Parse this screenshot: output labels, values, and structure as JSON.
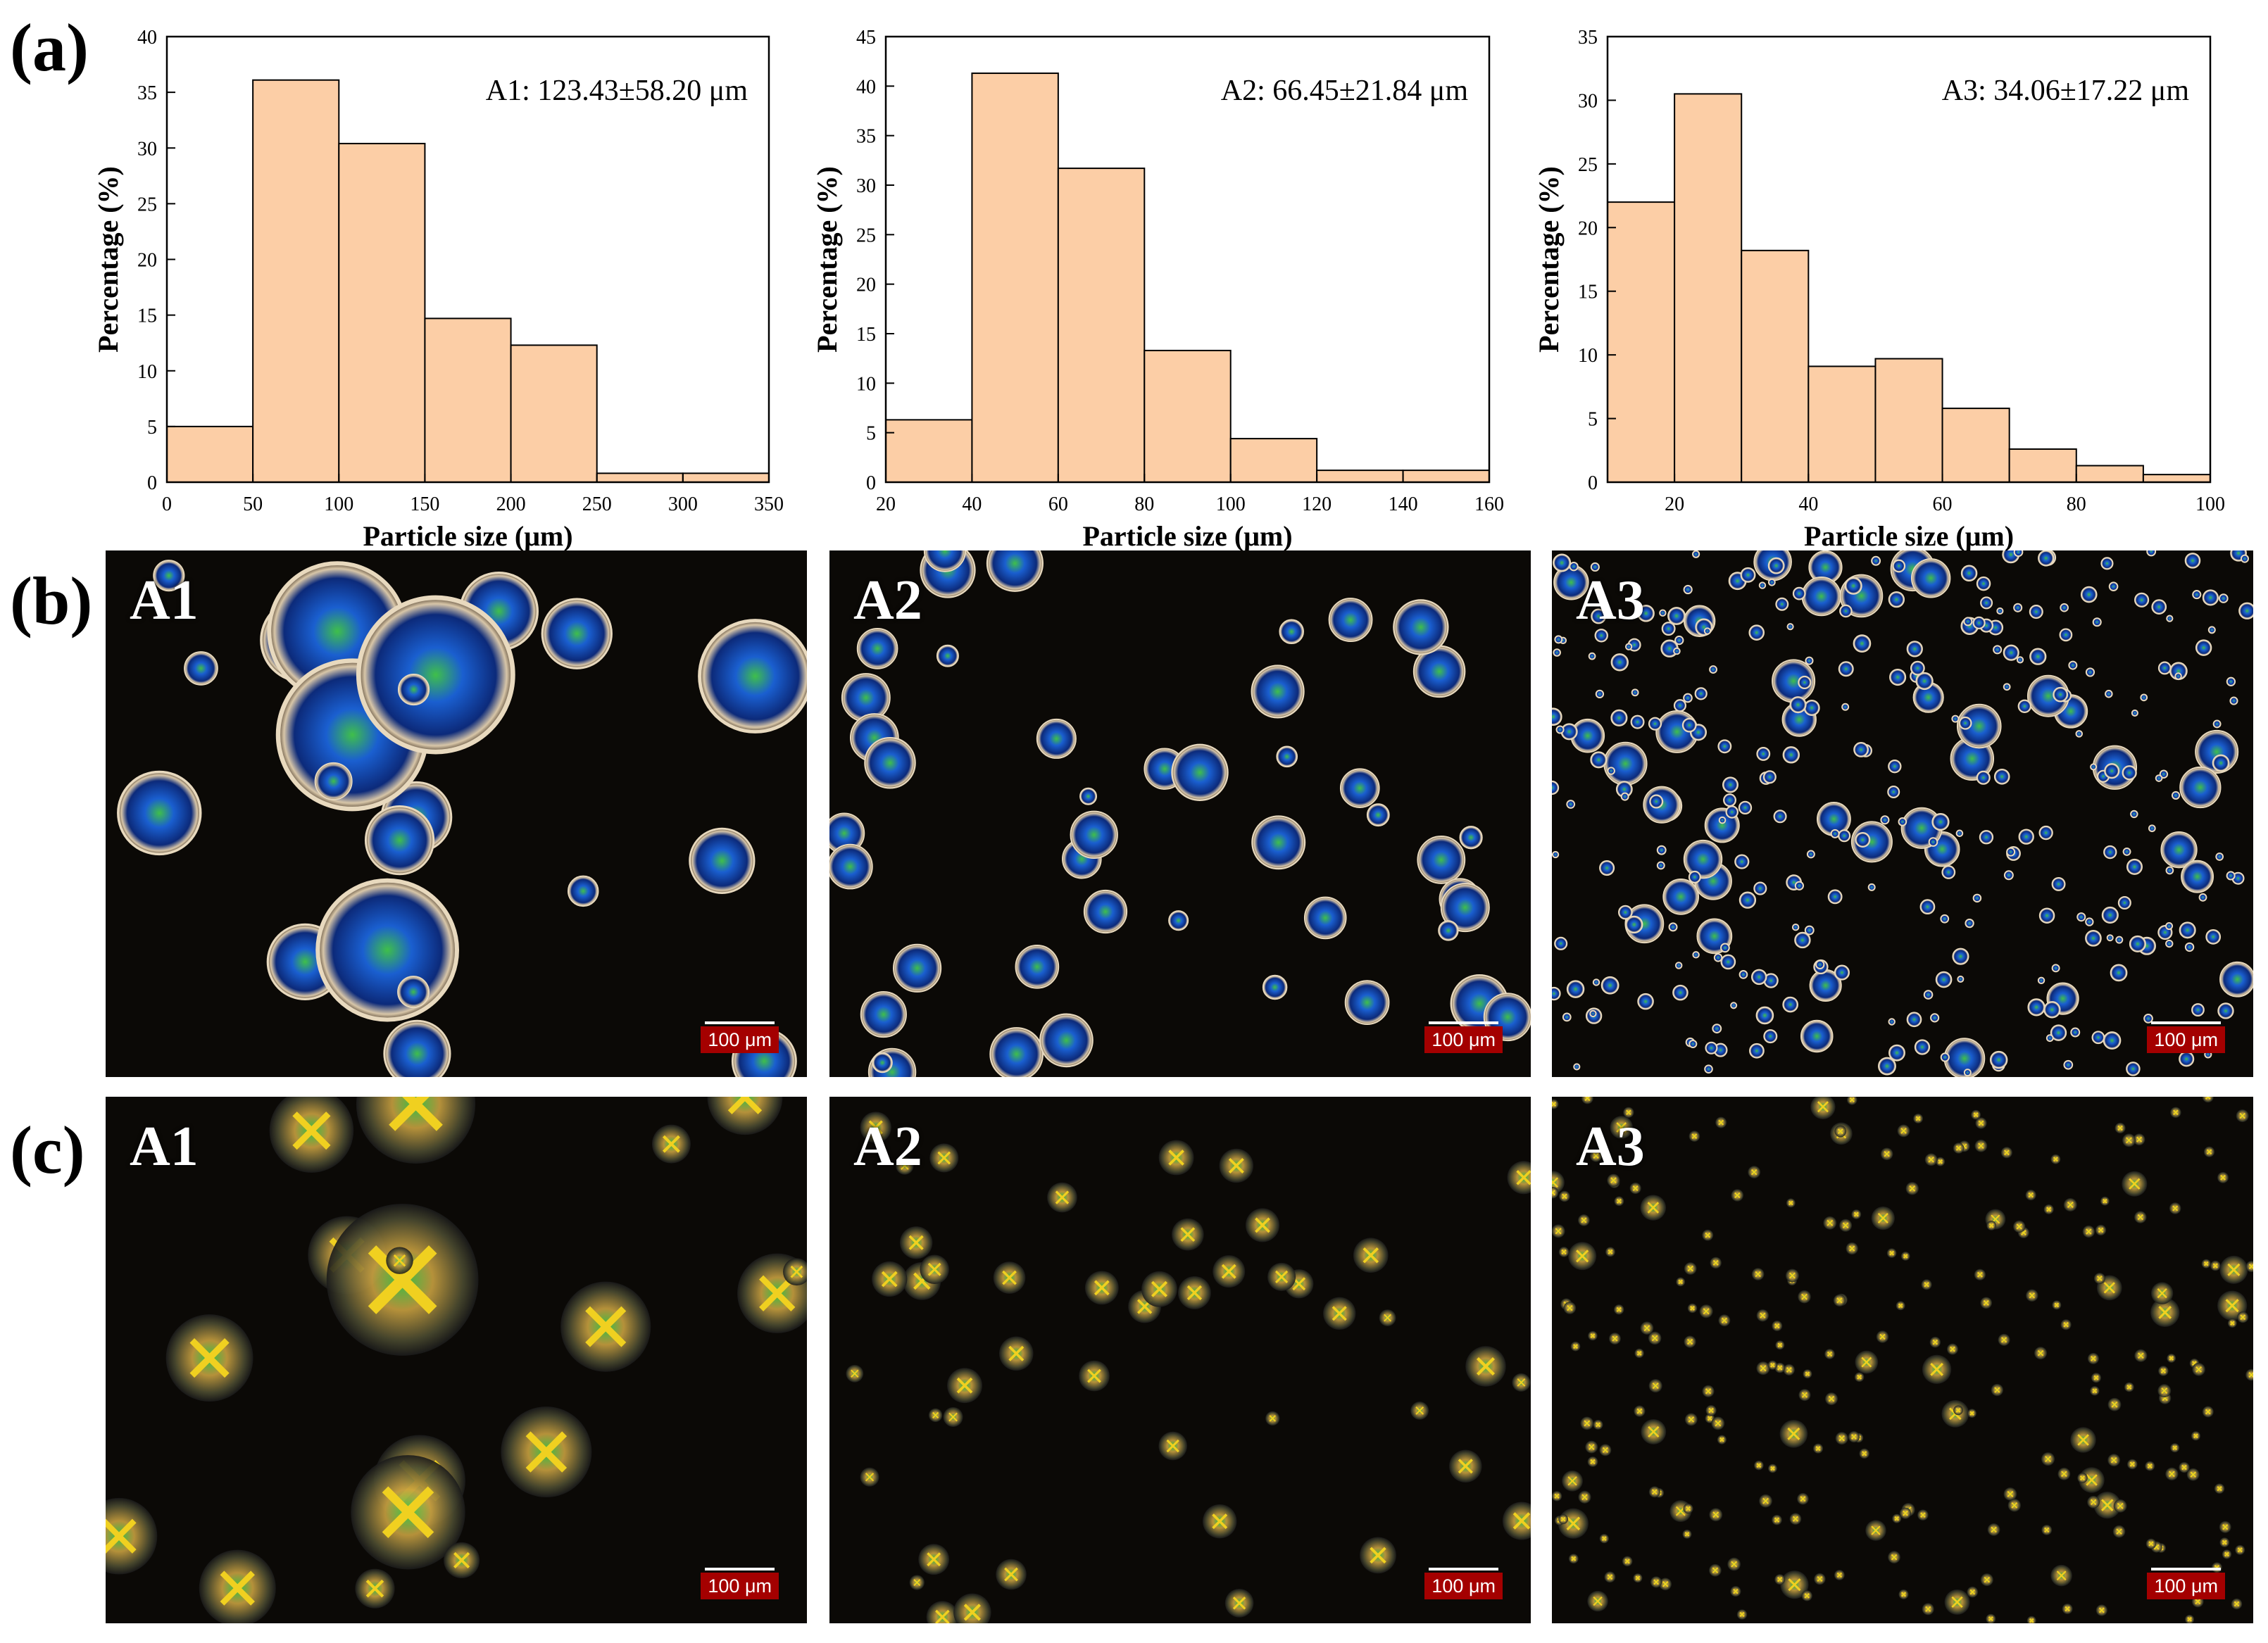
{
  "panel_letters": {
    "a": "(a)",
    "b": "(b)",
    "c": "(c)"
  },
  "chart_data": [
    {
      "type": "bar",
      "annotation": "A1: 123.43±58.20 μm",
      "xlabel": "Particle size (μm)",
      "ylabel": "Percentage (%)",
      "xlim": [
        0,
        350
      ],
      "ylim": [
        0,
        40
      ],
      "xticks": [
        0,
        50,
        100,
        150,
        200,
        250,
        300,
        350
      ],
      "yticks": [
        0,
        5,
        10,
        15,
        20,
        25,
        30,
        35,
        40
      ],
      "bins": [
        [
          0,
          50
        ],
        [
          50,
          100
        ],
        [
          100,
          150
        ],
        [
          150,
          200
        ],
        [
          200,
          250
        ],
        [
          250,
          300
        ],
        [
          300,
          350
        ]
      ],
      "values": [
        5.0,
        36.1,
        30.4,
        14.7,
        12.3,
        0.8,
        0.8
      ],
      "color": "#fcceA6"
    },
    {
      "type": "bar",
      "annotation": "A2: 66.45±21.84 μm",
      "xlabel": "Particle size (μm)",
      "ylabel": "Percentage (%)",
      "xlim": [
        20,
        160
      ],
      "ylim": [
        0,
        45
      ],
      "xticks": [
        20,
        40,
        60,
        80,
        100,
        120,
        140,
        160
      ],
      "yticks": [
        0,
        5,
        10,
        15,
        20,
        25,
        30,
        35,
        40,
        45
      ],
      "bins": [
        [
          20,
          40
        ],
        [
          40,
          60
        ],
        [
          60,
          80
        ],
        [
          80,
          100
        ],
        [
          100,
          120
        ],
        [
          120,
          140
        ],
        [
          140,
          160
        ]
      ],
      "values": [
        6.3,
        41.3,
        31.7,
        13.3,
        4.4,
        1.2,
        1.2
      ],
      "color": "#fcceA6"
    },
    {
      "type": "bar",
      "annotation": "A3: 34.06±17.22 μm",
      "xlabel": "Particle size (μm)",
      "ylabel": "Percentage (%)",
      "xlim": [
        10,
        100
      ],
      "ylim": [
        0,
        35
      ],
      "xticks": [
        20,
        40,
        60,
        80,
        100
      ],
      "yticks": [
        0,
        5,
        10,
        15,
        20,
        25,
        30,
        35
      ],
      "bins": [
        [
          10,
          20
        ],
        [
          20,
          30
        ],
        [
          30,
          40
        ],
        [
          40,
          50
        ],
        [
          50,
          60
        ],
        [
          60,
          70
        ],
        [
          70,
          80
        ],
        [
          80,
          90
        ],
        [
          90,
          100
        ]
      ],
      "values": [
        22.0,
        30.5,
        18.2,
        9.1,
        9.7,
        5.8,
        2.6,
        1.3,
        0.6
      ],
      "color": "#fcceA6"
    }
  ],
  "micrographs": {
    "b": [
      {
        "label": "A1",
        "scale": "100 μm"
      },
      {
        "label": "A2",
        "scale": "100 μm"
      },
      {
        "label": "A3",
        "scale": "100 μm"
      }
    ],
    "c": [
      {
        "label": "A1",
        "scale": "100 μm"
      },
      {
        "label": "A2",
        "scale": "100 μm"
      },
      {
        "label": "A3",
        "scale": "100 μm"
      }
    ]
  }
}
